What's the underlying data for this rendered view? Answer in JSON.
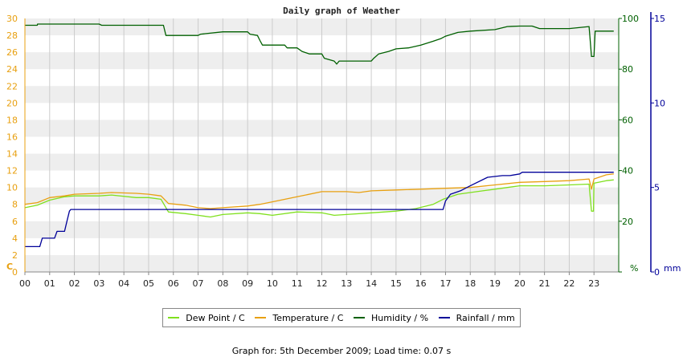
{
  "colors": {
    "dew": "#7fe01e",
    "temp": "#e8a010",
    "humidity": "#006000",
    "rain": "#000099",
    "left_axis": "#e8a010",
    "humidity_axis": "#006000",
    "rain_axis": "#000099",
    "band": "#eeeeee",
    "vgrid": "#cccccc"
  },
  "chart_data": {
    "type": "line",
    "title": "Daily graph of Weather",
    "x_tick_labels": [
      "00",
      "01",
      "02",
      "03",
      "04",
      "05",
      "06",
      "07",
      "08",
      "09",
      "10",
      "11",
      "12",
      "13",
      "14",
      "15",
      "16",
      "17",
      "18",
      "19",
      "20",
      "21",
      "22",
      "23"
    ],
    "xlim": [
      0,
      24
    ],
    "left_axis": {
      "unit_label": "C",
      "ylim": [
        0,
        30
      ],
      "ticks": [
        0,
        2,
        4,
        6,
        8,
        10,
        12,
        14,
        16,
        18,
        20,
        22,
        24,
        26,
        28,
        30
      ]
    },
    "humidity_axis": {
      "unit_label": "%",
      "ylim": [
        0,
        100
      ],
      "ticks": [
        0,
        20,
        40,
        60,
        80,
        100
      ]
    },
    "rain_axis": {
      "unit_label": "mm",
      "ylim": [
        0,
        15
      ],
      "ticks": [
        0,
        5,
        10,
        15
      ]
    },
    "grid": true,
    "legend_position": "bottom",
    "series": [
      {
        "name": "Dew Point / C",
        "axis": "left",
        "color_key": "dew",
        "points": [
          [
            0,
            7.6
          ],
          [
            0.5,
            7.9
          ],
          [
            1,
            8.5
          ],
          [
            1.6,
            8.9
          ],
          [
            2,
            9.0
          ],
          [
            3,
            9.0
          ],
          [
            3.5,
            9.1
          ],
          [
            4.5,
            8.8
          ],
          [
            5,
            8.8
          ],
          [
            5.5,
            8.6
          ],
          [
            5.8,
            7.1
          ],
          [
            6.5,
            6.9
          ],
          [
            7,
            6.7
          ],
          [
            7.5,
            6.5
          ],
          [
            8,
            6.8
          ],
          [
            9,
            7.0
          ],
          [
            9.5,
            6.9
          ],
          [
            10,
            6.7
          ],
          [
            11,
            7.1
          ],
          [
            12,
            7.0
          ],
          [
            12.5,
            6.7
          ],
          [
            13,
            6.8
          ],
          [
            14,
            7.0
          ],
          [
            15,
            7.2
          ],
          [
            15.8,
            7.5
          ],
          [
            16.5,
            8.0
          ],
          [
            16.9,
            8.6
          ],
          [
            17.5,
            9.2
          ],
          [
            18.5,
            9.6
          ],
          [
            19,
            9.8
          ],
          [
            20,
            10.2
          ],
          [
            21,
            10.2
          ],
          [
            22,
            10.3
          ],
          [
            22.8,
            10.4
          ],
          [
            22.9,
            7.2
          ],
          [
            22.98,
            7.2
          ],
          [
            23,
            10.5
          ],
          [
            23.5,
            10.8
          ],
          [
            23.8,
            10.9
          ]
        ]
      },
      {
        "name": "Temperature / C",
        "axis": "left",
        "color_key": "temp",
        "points": [
          [
            0,
            8.0
          ],
          [
            0.5,
            8.2
          ],
          [
            1,
            8.8
          ],
          [
            1.6,
            9.0
          ],
          [
            2,
            9.2
          ],
          [
            3,
            9.3
          ],
          [
            3.5,
            9.4
          ],
          [
            4.5,
            9.3
          ],
          [
            5,
            9.2
          ],
          [
            5.5,
            9.0
          ],
          [
            5.8,
            8.1
          ],
          [
            6.5,
            7.9
          ],
          [
            7,
            7.6
          ],
          [
            7.5,
            7.5
          ],
          [
            8,
            7.6
          ],
          [
            9,
            7.8
          ],
          [
            9.5,
            8.0
          ],
          [
            10,
            8.3
          ],
          [
            11,
            8.9
          ],
          [
            12,
            9.5
          ],
          [
            13,
            9.5
          ],
          [
            13.5,
            9.4
          ],
          [
            14,
            9.6
          ],
          [
            15,
            9.7
          ],
          [
            16,
            9.8
          ],
          [
            17,
            9.9
          ],
          [
            18,
            10.0
          ],
          [
            19,
            10.3
          ],
          [
            20,
            10.6
          ],
          [
            21,
            10.7
          ],
          [
            22,
            10.8
          ],
          [
            22.8,
            11.0
          ],
          [
            22.9,
            9.8
          ],
          [
            23,
            11.0
          ],
          [
            23.5,
            11.5
          ],
          [
            23.8,
            11.6
          ]
        ]
      },
      {
        "name": "Humidity / %",
        "axis": "humidity",
        "color_key": "humidity",
        "points": [
          [
            0,
            97.3
          ],
          [
            0.5,
            97.3
          ],
          [
            0.51,
            97.8
          ],
          [
            2,
            97.8
          ],
          [
            3,
            97.8
          ],
          [
            3.1,
            97.3
          ],
          [
            4.5,
            97.3
          ],
          [
            4.51,
            97.3
          ],
          [
            5.6,
            97.3
          ],
          [
            5.7,
            93.3
          ],
          [
            6.5,
            93.3
          ],
          [
            7,
            93.3
          ],
          [
            7.1,
            93.8
          ],
          [
            8,
            94.7
          ],
          [
            9,
            94.7
          ],
          [
            9.1,
            93.8
          ],
          [
            9.4,
            93.3
          ],
          [
            9.5,
            91.3
          ],
          [
            9.6,
            89.5
          ],
          [
            10.5,
            89.5
          ],
          [
            10.6,
            88.4
          ],
          [
            11,
            88.4
          ],
          [
            11.2,
            87.0
          ],
          [
            11.5,
            86.0
          ],
          [
            12,
            86.0
          ],
          [
            12.1,
            84.3
          ],
          [
            12.5,
            83.2
          ],
          [
            12.6,
            82.0
          ],
          [
            12.7,
            83.2
          ],
          [
            13,
            83.2
          ],
          [
            14,
            83.2
          ],
          [
            14.1,
            84.3
          ],
          [
            14.3,
            86.0
          ],
          [
            14.7,
            87.0
          ],
          [
            15,
            88.0
          ],
          [
            15.5,
            88.4
          ],
          [
            16,
            89.5
          ],
          [
            16.5,
            91.0
          ],
          [
            16.8,
            92.0
          ],
          [
            17,
            93.0
          ],
          [
            17.5,
            94.5
          ],
          [
            18,
            95.0
          ],
          [
            19,
            95.6
          ],
          [
            19.5,
            96.8
          ],
          [
            20,
            97.0
          ],
          [
            20.5,
            97.0
          ],
          [
            20.8,
            96.0
          ],
          [
            21,
            96.0
          ],
          [
            22,
            96.0
          ],
          [
            22.8,
            96.8
          ],
          [
            22.85,
            91.0
          ],
          [
            22.9,
            85.0
          ],
          [
            23,
            85.0
          ],
          [
            23.05,
            95.0
          ],
          [
            23.5,
            95.0
          ],
          [
            23.8,
            95.0
          ]
        ]
      },
      {
        "name": "Rainfall / mm",
        "axis": "rain",
        "color_key": "rain",
        "points": [
          [
            0,
            1.5
          ],
          [
            0.6,
            1.5
          ],
          [
            0.7,
            2.0
          ],
          [
            1.2,
            2.0
          ],
          [
            1.3,
            2.4
          ],
          [
            1.6,
            2.4
          ],
          [
            1.7,
            3.0
          ],
          [
            1.8,
            3.6
          ],
          [
            1.85,
            3.7
          ],
          [
            2,
            3.7
          ],
          [
            10,
            3.7
          ],
          [
            16.9,
            3.7
          ],
          [
            17,
            4.2
          ],
          [
            17.2,
            4.6
          ],
          [
            17.6,
            4.8
          ],
          [
            18,
            5.1
          ],
          [
            18.7,
            5.6
          ],
          [
            19.3,
            5.7
          ],
          [
            19.6,
            5.7
          ],
          [
            20,
            5.8
          ],
          [
            20.1,
            5.9
          ],
          [
            23.8,
            5.9
          ]
        ]
      }
    ]
  },
  "footer": "Graph for: 5th December 2009; Load time: 0.07 s"
}
